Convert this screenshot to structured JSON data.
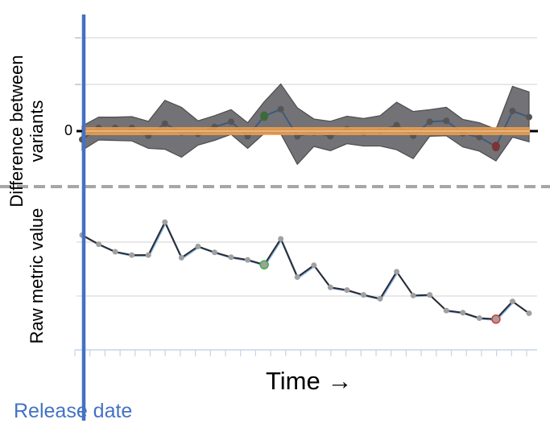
{
  "chart_data": [
    {
      "type": "area",
      "ylabel": "Difference between variants",
      "ytick_labels": [
        "0"
      ],
      "ylim": [
        -1.0,
        2.0
      ],
      "grid": true,
      "series": [
        {
          "role": "difference",
          "values": [
            -0.18,
            0.07,
            0.07,
            0.07,
            -0.1,
            0.16,
            -0.03,
            -0.06,
            0.09,
            0.2,
            -0.11,
            0.32,
            0.47,
            -0.11,
            -0.03,
            -0.11,
            0.04,
            -0.03,
            0.0,
            0.13,
            -0.1,
            0.2,
            0.22,
            -0.05,
            -0.13,
            -0.33,
            0.43,
            0.3
          ]
        },
        {
          "role": "upper_bound",
          "values": [
            0.11,
            0.3,
            0.3,
            0.31,
            0.21,
            0.66,
            0.51,
            0.22,
            0.33,
            0.46,
            0.18,
            0.63,
            1.01,
            0.5,
            0.26,
            0.21,
            0.32,
            0.27,
            0.33,
            0.62,
            0.42,
            0.46,
            0.51,
            0.25,
            0.18,
            0.04,
            0.96,
            0.84
          ]
        },
        {
          "role": "lower_bound",
          "values": [
            -0.41,
            -0.19,
            -0.2,
            -0.21,
            -0.37,
            -0.39,
            -0.56,
            -0.3,
            -0.2,
            -0.07,
            -0.37,
            -0.05,
            -0.06,
            -0.71,
            -0.33,
            -0.42,
            -0.27,
            -0.32,
            -0.32,
            -0.4,
            -0.59,
            -0.11,
            -0.1,
            -0.34,
            -0.43,
            -0.64,
            -0.13,
            -0.23
          ]
        }
      ],
      "reference_line": 0,
      "highlight_points": [
        {
          "index": 11,
          "color": "#3a6b3a"
        },
        {
          "index": 25,
          "color": "#7a3434"
        }
      ]
    },
    {
      "type": "line",
      "ylabel": "Raw metric value",
      "xlabel": "Time →",
      "ylim": [
        0,
        2.5
      ],
      "grid": true,
      "values": [
        2.13,
        1.96,
        1.82,
        1.76,
        1.76,
        2.37,
        1.71,
        1.92,
        1.81,
        1.72,
        1.67,
        1.58,
        2.06,
        1.35,
        1.57,
        1.16,
        1.11,
        1.02,
        0.95,
        1.45,
        1.01,
        1.02,
        0.73,
        0.69,
        0.59,
        0.57,
        0.9,
        0.68
      ],
      "highlight_points": [
        {
          "index": 11,
          "color": "#3cb043"
        },
        {
          "index": 25,
          "color": "#e03030"
        }
      ]
    }
  ],
  "annotation": {
    "label": "Release date",
    "color": "#4472c4"
  },
  "colors": {
    "band": "#6b6b70",
    "zero_line": "#f0a050",
    "line": "#2a2a30",
    "point": "#a0a0a0",
    "divider": "#a6a6a6"
  }
}
